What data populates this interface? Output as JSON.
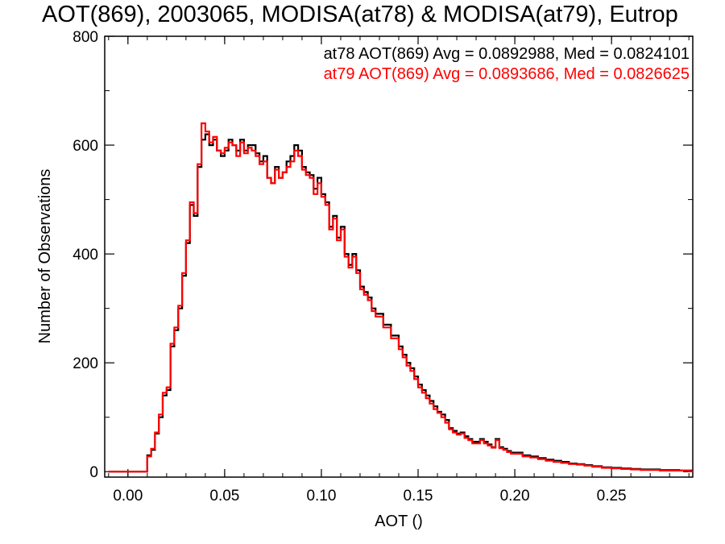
{
  "title": "AOT(869), 2003065, MODISA(at78) & MODISA(at79), Eutrop",
  "chart_data": {
    "type": "line",
    "step": true,
    "title": "AOT(869), 2003065, MODISA(at78) & MODISA(at79), Eutrop",
    "xlabel": "AOT ()",
    "ylabel": "Number of Observations",
    "xlim": [
      -0.012,
      0.292
    ],
    "ylim": [
      -10,
      800
    ],
    "xticks": [
      0.0,
      0.05,
      0.1,
      0.15,
      0.2,
      0.25
    ],
    "xtick_labels": [
      "0.00",
      "0.05",
      "0.10",
      "0.15",
      "0.20",
      "0.25"
    ],
    "yticks": [
      0,
      200,
      400,
      600,
      800
    ],
    "ytick_labels": [
      "0",
      "200",
      "400",
      "600",
      "800"
    ],
    "annotations": [
      {
        "text": "at78 AOT(869) Avg = 0.0892988, Med = 0.0824101",
        "color": "#000000"
      },
      {
        "text": "at79 AOT(869) Avg = 0.0893686, Med = 0.0826625",
        "color": "#ff0000"
      }
    ],
    "x": [
      -0.01,
      0.0,
      0.005,
      0.008,
      0.01,
      0.012,
      0.014,
      0.016,
      0.018,
      0.02,
      0.022,
      0.024,
      0.026,
      0.028,
      0.03,
      0.032,
      0.034,
      0.036,
      0.038,
      0.04,
      0.042,
      0.044,
      0.046,
      0.048,
      0.05,
      0.052,
      0.054,
      0.056,
      0.058,
      0.06,
      0.062,
      0.064,
      0.066,
      0.068,
      0.07,
      0.072,
      0.074,
      0.076,
      0.078,
      0.08,
      0.082,
      0.084,
      0.086,
      0.088,
      0.09,
      0.092,
      0.094,
      0.096,
      0.098,
      0.1,
      0.102,
      0.104,
      0.106,
      0.108,
      0.11,
      0.112,
      0.114,
      0.116,
      0.118,
      0.12,
      0.122,
      0.124,
      0.126,
      0.128,
      0.13,
      0.132,
      0.134,
      0.136,
      0.138,
      0.14,
      0.142,
      0.144,
      0.146,
      0.148,
      0.15,
      0.152,
      0.154,
      0.156,
      0.158,
      0.16,
      0.162,
      0.164,
      0.166,
      0.168,
      0.17,
      0.172,
      0.174,
      0.176,
      0.178,
      0.18,
      0.182,
      0.184,
      0.186,
      0.188,
      0.19,
      0.192,
      0.194,
      0.196,
      0.198,
      0.2,
      0.204,
      0.208,
      0.212,
      0.216,
      0.22,
      0.224,
      0.228,
      0.232,
      0.236,
      0.24,
      0.245,
      0.25,
      0.255,
      0.26,
      0.265,
      0.27,
      0.275,
      0.28,
      0.285,
      0.29
    ],
    "series": [
      {
        "name": "at78",
        "color": "#000000",
        "values": [
          0,
          0,
          0,
          0,
          30,
          40,
          70,
          100,
          140,
          150,
          230,
          260,
          300,
          360,
          420,
          490,
          470,
          560,
          610,
          620,
          600,
          610,
          590,
          580,
          590,
          610,
          600,
          590,
          610,
          590,
          600,
          600,
          585,
          570,
          580,
          540,
          530,
          560,
          540,
          550,
          570,
          580,
          600,
          590,
          560,
          550,
          545,
          520,
          540,
          510,
          495,
          450,
          470,
          430,
          450,
          400,
          380,
          400,
          370,
          340,
          330,
          320,
          300,
          290,
          290,
          270,
          270,
          250,
          250,
          230,
          215,
          200,
          190,
          175,
          160,
          150,
          140,
          130,
          120,
          110,
          105,
          95,
          80,
          75,
          70,
          72,
          65,
          60,
          55,
          55,
          60,
          55,
          50,
          45,
          60,
          45,
          42,
          38,
          35,
          35,
          30,
          28,
          25,
          22,
          20,
          18,
          15,
          14,
          12,
          10,
          8,
          7,
          6,
          5,
          4,
          4,
          3,
          3,
          2,
          2
        ]
      },
      {
        "name": "at79",
        "color": "#ff0000",
        "values": [
          0,
          0,
          0,
          0,
          28,
          42,
          72,
          105,
          145,
          155,
          235,
          265,
          305,
          365,
          425,
          495,
          475,
          565,
          640,
          625,
          605,
          615,
          590,
          585,
          595,
          605,
          600,
          580,
          605,
          585,
          595,
          590,
          580,
          565,
          570,
          540,
          530,
          555,
          540,
          550,
          560,
          570,
          590,
          580,
          555,
          545,
          540,
          510,
          530,
          505,
          490,
          445,
          465,
          425,
          445,
          395,
          375,
          395,
          365,
          335,
          325,
          315,
          295,
          285,
          285,
          265,
          265,
          245,
          245,
          225,
          210,
          195,
          185,
          170,
          155,
          145,
          135,
          125,
          115,
          108,
          100,
          90,
          78,
          72,
          68,
          70,
          62,
          58,
          52,
          52,
          58,
          52,
          48,
          44,
          58,
          43,
          40,
          36,
          33,
          33,
          28,
          26,
          23,
          20,
          18,
          16,
          14,
          13,
          11,
          9,
          7,
          6,
          5,
          4,
          3,
          3,
          2,
          2,
          2,
          1
        ]
      }
    ]
  }
}
